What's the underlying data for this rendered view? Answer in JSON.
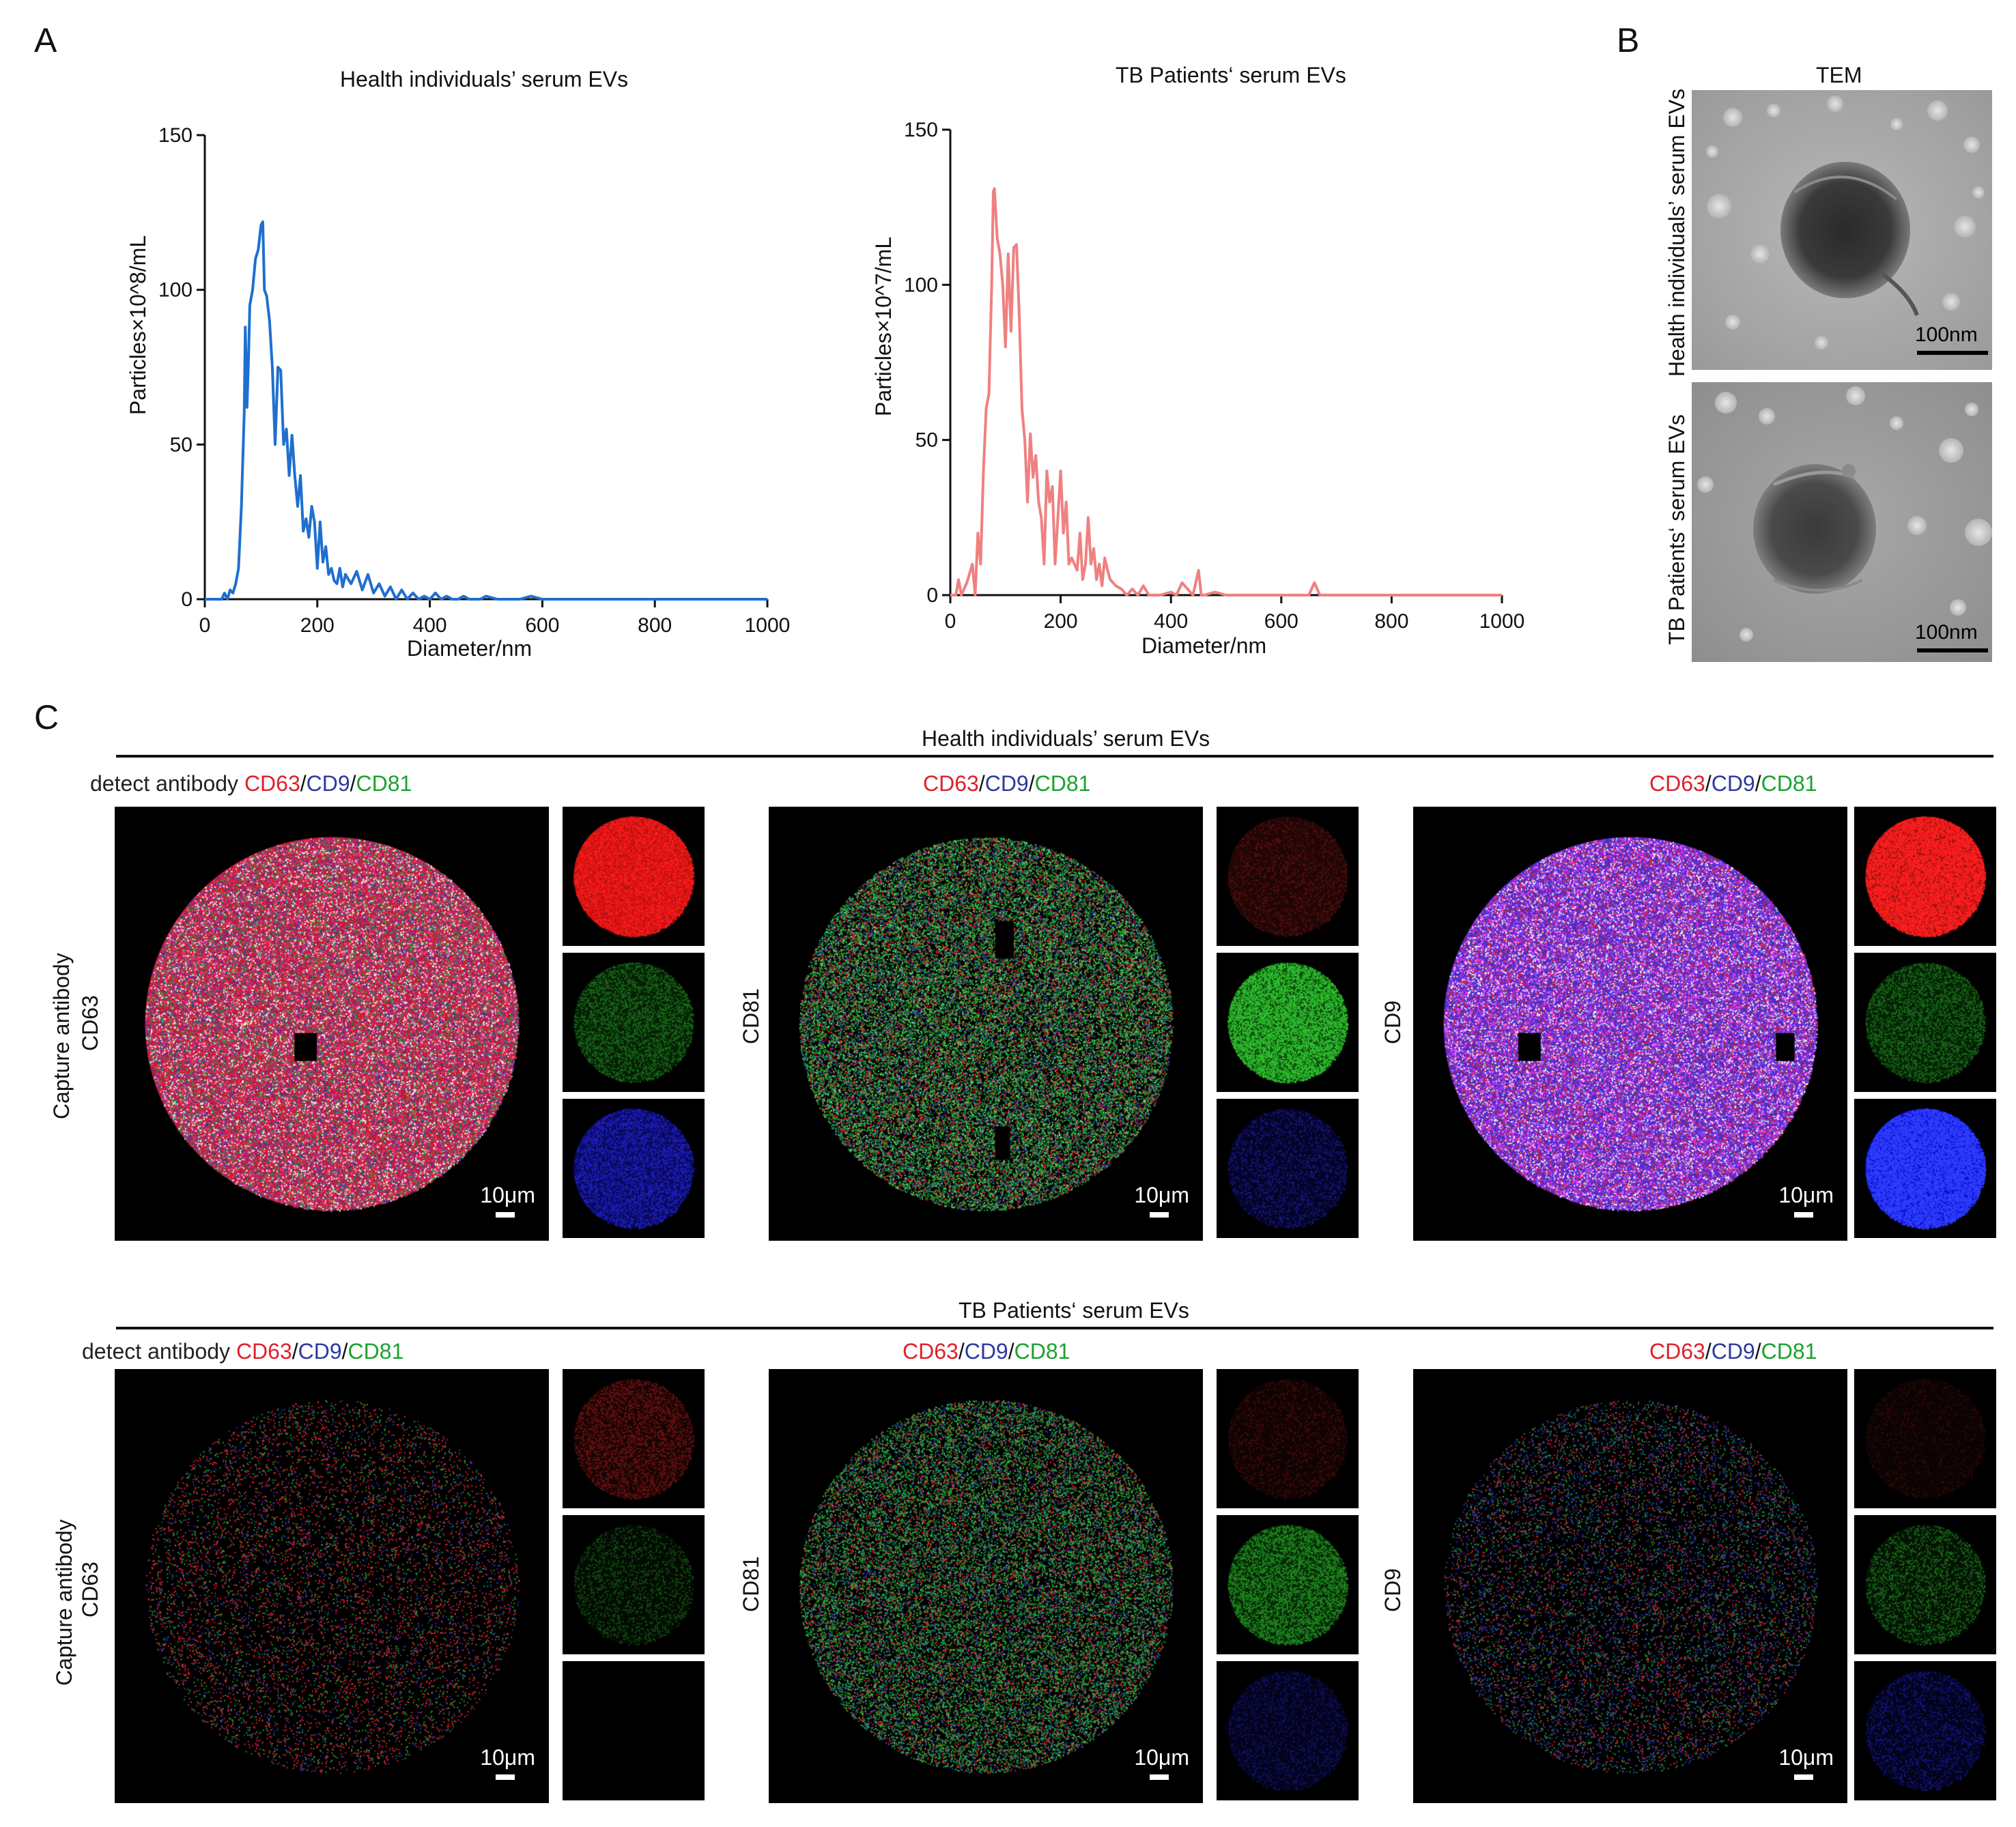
{
  "panels": {
    "a": {
      "letter": "A"
    },
    "b": {
      "letter": "B"
    },
    "c": {
      "letter": "C"
    }
  },
  "colors": {
    "healthy_line": "#1f6fcf",
    "tb_line": "#f08080",
    "red": "#e0202a",
    "blue": "#2a3aa0",
    "green": "#1aa22e"
  },
  "chart_data": [
    {
      "type": "line",
      "title": "Health individuals’ serum EVs",
      "xlabel": "Diameter/nm",
      "ylabel": "Particles×10^8/mL",
      "xlim": [
        0,
        1000
      ],
      "ylim": [
        0,
        150
      ],
      "xticks": [
        "0",
        "200",
        "400",
        "600",
        "800",
        "1000"
      ],
      "yticks": [
        "0",
        "50",
        "100",
        "150"
      ],
      "series": [
        {
          "x": [
            0,
            10,
            20,
            30,
            35,
            40,
            45,
            50,
            55,
            60,
            65,
            70,
            72,
            75,
            78,
            80,
            85,
            90,
            95,
            100,
            103,
            106,
            110,
            115,
            120,
            125,
            130,
            135,
            140,
            145,
            150,
            155,
            160,
            165,
            170,
            175,
            180,
            185,
            190,
            195,
            200,
            205,
            210,
            215,
            220,
            225,
            230,
            235,
            240,
            245,
            250,
            260,
            270,
            280,
            290,
            300,
            310,
            320,
            330,
            340,
            350,
            360,
            370,
            380,
            390,
            400,
            410,
            420,
            430,
            440,
            450,
            460,
            470,
            480,
            490,
            500,
            520,
            540,
            560,
            580,
            600,
            700,
            800,
            900,
            1000
          ],
          "values": [
            0,
            0,
            0,
            0,
            2,
            0,
            3,
            2,
            5,
            10,
            30,
            60,
            88,
            62,
            80,
            95,
            100,
            110,
            113,
            121,
            122,
            100,
            98,
            90,
            75,
            50,
            75,
            74,
            50,
            55,
            40,
            53,
            40,
            30,
            40,
            22,
            26,
            20,
            30,
            25,
            10,
            25,
            12,
            17,
            8,
            10,
            6,
            5,
            10,
            4,
            8,
            5,
            9,
            3,
            8,
            2,
            5,
            1,
            4,
            0,
            3,
            0,
            2,
            0,
            1,
            0,
            2,
            0,
            1,
            0,
            0,
            1,
            0,
            0,
            0,
            1,
            0,
            0,
            0,
            1,
            0,
            0,
            0,
            0,
            0
          ]
        }
      ]
    },
    {
      "type": "line",
      "title": "TB Patients‘ serum EVs",
      "xlabel": "Diameter/nm",
      "ylabel": "Particles×10^7/mL",
      "xlim": [
        0,
        1000
      ],
      "ylim": [
        0,
        150
      ],
      "xticks": [
        "0",
        "200",
        "400",
        "600",
        "800",
        "1000"
      ],
      "yticks": [
        "0",
        "50",
        "100",
        "150"
      ],
      "series": [
        {
          "x": [
            0,
            10,
            15,
            20,
            30,
            40,
            45,
            50,
            55,
            60,
            65,
            70,
            75,
            78,
            80,
            85,
            90,
            95,
            100,
            105,
            110,
            115,
            120,
            125,
            130,
            135,
            140,
            145,
            150,
            155,
            160,
            165,
            170,
            175,
            180,
            185,
            190,
            195,
            200,
            205,
            210,
            215,
            220,
            225,
            230,
            235,
            240,
            245,
            250,
            255,
            260,
            265,
            270,
            275,
            280,
            285,
            290,
            300,
            310,
            320,
            330,
            340,
            350,
            360,
            380,
            400,
            410,
            420,
            440,
            450,
            455,
            460,
            480,
            500,
            600,
            650,
            660,
            670,
            700,
            800,
            900,
            1000
          ],
          "values": [
            0,
            0,
            5,
            0,
            4,
            10,
            0,
            20,
            10,
            40,
            60,
            65,
            100,
            130,
            131,
            115,
            110,
            100,
            80,
            110,
            85,
            112,
            113,
            90,
            60,
            50,
            30,
            52,
            38,
            45,
            30,
            25,
            10,
            40,
            30,
            35,
            10,
            25,
            40,
            20,
            30,
            10,
            12,
            10,
            8,
            20,
            5,
            10,
            25,
            10,
            15,
            5,
            10,
            3,
            12,
            8,
            5,
            3,
            2,
            0,
            2,
            0,
            3,
            0,
            0,
            1,
            0,
            4,
            0,
            8,
            0,
            0,
            1,
            0,
            0,
            0,
            4,
            0,
            0,
            0,
            0,
            0
          ]
        }
      ]
    }
  ],
  "tem": {
    "title": "TEM",
    "healthy_label": "Health individuals’ serum EVs",
    "tb_label": "TB Patients‘ serum EVs",
    "scale_label": "100nm"
  },
  "grid": {
    "healthy_header": "Health individuals’ serum EVs",
    "tb_header": "TB Patients‘ serum EVs",
    "detect_label": "detect antibody",
    "cd63": "CD63",
    "cd9": "CD9",
    "cd81": "CD81",
    "slash": "/",
    "capture_line1": "Capture antibody",
    "capture_line2": "CD63",
    "row_label_cd81": "CD81",
    "row_label_cd9": "CD9",
    "scale_label": "10μm"
  }
}
